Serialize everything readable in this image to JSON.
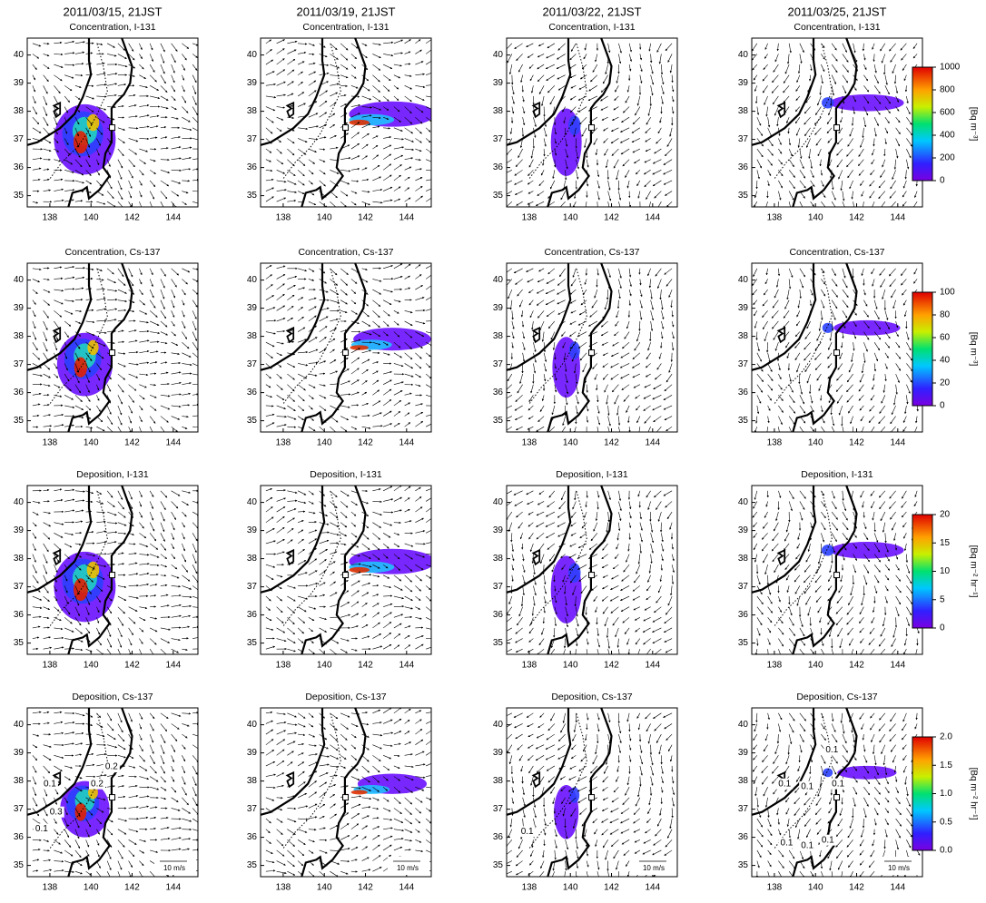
{
  "columns": [
    "2011/03/15,  21JST",
    "2011/03/19,  21JST",
    "2011/03/22,  21JST",
    "2011/03/25,  21JST"
  ],
  "rows": [
    {
      "title": "Concentration, I-131",
      "colorbar": {
        "lim": [
          0,
          1000
        ],
        "ticks": [
          0,
          200,
          400,
          600,
          800,
          1000
        ],
        "unit": "[Bq m⁻³]"
      }
    },
    {
      "title": "Concentration, Cs-137",
      "colorbar": {
        "lim": [
          0,
          100
        ],
        "ticks": [
          0,
          20,
          40,
          60,
          80,
          100
        ],
        "unit": "[Bq m⁻³]"
      }
    },
    {
      "title": "Deposition, I-131",
      "colorbar": {
        "lim": [
          0,
          20
        ],
        "ticks": [
          0,
          5,
          10,
          15,
          20
        ],
        "unit": "[Bq m⁻² hr⁻¹]"
      }
    },
    {
      "title": "Deposition, Cs-137",
      "colorbar": {
        "lim": [
          0,
          2
        ],
        "ticks": [
          {
            "value": 0,
            "label": "0.0"
          },
          {
            "value": 0.5,
            "label": "0.5"
          },
          {
            "value": 1,
            "label": "1.0"
          },
          {
            "value": 1.5,
            "label": "1.5"
          },
          {
            "value": 2,
            "label": "2.0"
          }
        ],
        "unit": "[Bq m⁻² hr⁻¹]"
      },
      "scale_label": "10 m/s",
      "contour_labels": [
        [
          "0.2",
          "0.1",
          "0.2",
          "0.3",
          "0.1"
        ],
        [],
        [
          "0.1"
        ],
        [
          "0.1",
          "0.1",
          "0.1",
          "0.1",
          "0.1",
          "0.1",
          "0.1"
        ]
      ]
    }
  ],
  "map": {
    "lat_lim": [
      34.6,
      40.6
    ],
    "lon_lim": [
      136.9,
      145.2
    ],
    "lat_ticks": [
      35,
      36,
      37,
      38,
      39,
      40
    ],
    "lon_ticks": [
      138,
      140,
      142,
      144
    ]
  }
}
